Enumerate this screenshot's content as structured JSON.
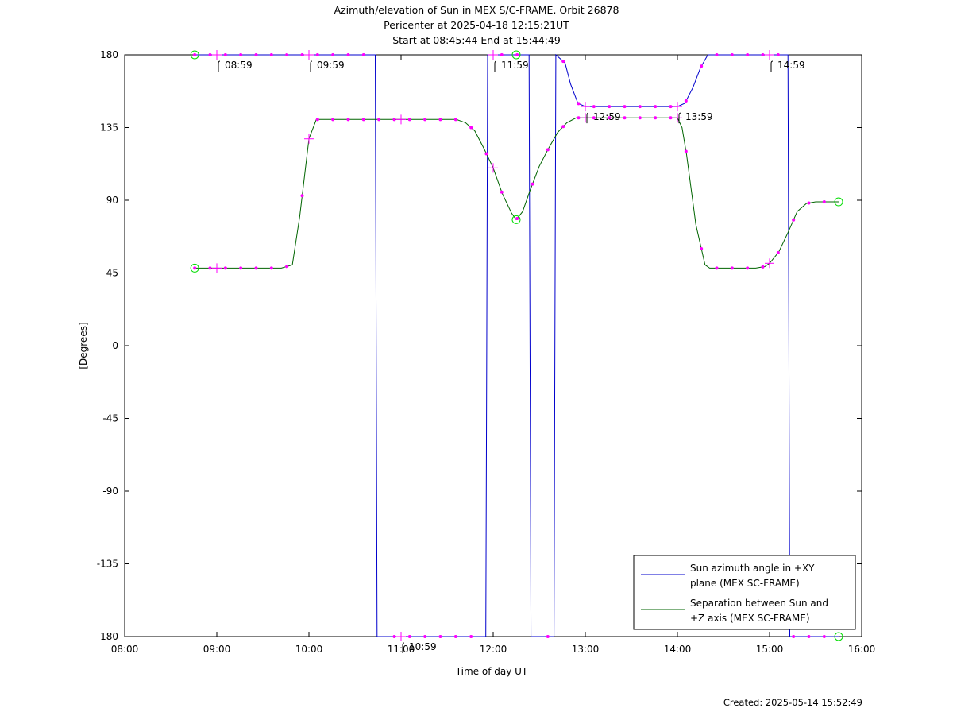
{
  "titles": {
    "line1": "Azimuth/elevation of Sun in MEX S/C-FRAME.  Orbit 26878",
    "line2": "Pericenter at 2025-04-18 12:15:21UT",
    "line3": "Start at 08:45:44 End at 15:44:49"
  },
  "created": "Created: 2025-05-14 15:52:49",
  "chart_data": {
    "type": "line",
    "xlabel": "Time of day UT",
    "ylabel": "[Degrees]",
    "xlim": [
      8.0,
      16.0
    ],
    "ylim": [
      -180,
      180
    ],
    "x_ticks": [
      8,
      9,
      10,
      11,
      12,
      13,
      14,
      15,
      16
    ],
    "x_tick_labels": [
      "08:00",
      "09:00",
      "10:00",
      "11:00",
      "12:00",
      "13:00",
      "14:00",
      "15:00",
      "16:00"
    ],
    "y_ticks": [
      180,
      135,
      90,
      45,
      0,
      -45,
      -90,
      -135,
      -180
    ],
    "y_tick_labels": [
      "180",
      "135",
      "90",
      "45",
      "0",
      "-45",
      "-90",
      "-135",
      "-180"
    ],
    "grid": false,
    "legend_position": "bottom-right",
    "colors": {
      "azimuth": "#0000cc",
      "separation": "#006400",
      "sample_marker": "#ff00ff",
      "extreme_marker": "#00dd00"
    },
    "series": [
      {
        "name": "Sun azimuth angle in +XY plane (MEX SC-FRAME)",
        "legend_lines": [
          "Sun azimuth angle in +XY",
          "plane (MEX SC-FRAME)"
        ],
        "x": [
          8.76,
          9.0,
          10.0,
          10.72,
          10.73,
          10.74,
          11.0,
          11.5,
          11.92,
          11.93,
          11.94,
          12.0,
          12.25,
          12.39,
          12.4,
          12.41,
          12.66,
          12.67,
          12.68,
          12.78,
          12.84,
          12.92,
          13.0,
          14.0,
          14.08,
          14.17,
          14.25,
          14.33,
          15.0,
          15.2,
          15.21,
          15.22,
          15.75
        ],
        "y": [
          180,
          180,
          180,
          180,
          0,
          -180,
          -180,
          -180,
          -180,
          0,
          180,
          180,
          180,
          180,
          0,
          -180,
          -180,
          0,
          180,
          175,
          162,
          150,
          148,
          148,
          150,
          160,
          172,
          180,
          180,
          180,
          0,
          -180,
          -180
        ]
      },
      {
        "name": "Separation between Sun and +Z axis (MEX SC-FRAME)",
        "legend_lines": [
          "Separation between Sun and",
          "+Z axis (MEX SC-FRAME)"
        ],
        "x": [
          8.76,
          9.0,
          9.7,
          9.82,
          9.9,
          10.0,
          10.08,
          10.15,
          11.0,
          11.6,
          11.7,
          11.8,
          11.9,
          12.0,
          12.1,
          12.2,
          12.25,
          12.32,
          12.4,
          12.5,
          12.6,
          12.7,
          12.8,
          12.9,
          13.0,
          14.0,
          14.05,
          14.1,
          14.2,
          14.3,
          14.35,
          14.85,
          14.95,
          15.0,
          15.1,
          15.2,
          15.3,
          15.4,
          15.5,
          15.75
        ],
        "y": [
          48,
          48,
          48,
          50,
          80,
          128,
          140,
          140,
          140,
          140,
          138,
          133,
          122,
          110,
          94,
          82,
          78,
          83,
          96,
          111,
          122,
          132,
          138,
          141,
          141,
          141,
          135,
          118,
          75,
          50,
          48,
          48,
          49,
          51,
          58,
          70,
          83,
          88,
          89,
          89
        ]
      }
    ],
    "time_labels": [
      {
        "x": 9.0,
        "text": "08:59",
        "series": 0
      },
      {
        "x": 10.0,
        "text": "09:59",
        "series": 0
      },
      {
        "x": 11.0,
        "text": "10:59",
        "series": 0
      },
      {
        "x": 12.0,
        "text": "11:59",
        "series": 0
      },
      {
        "x": 13.0,
        "text": "12:59",
        "series": 0
      },
      {
        "x": 14.0,
        "text": "13:59",
        "series": 0
      },
      {
        "x": 15.0,
        "text": "14:59",
        "series": 0
      }
    ]
  }
}
